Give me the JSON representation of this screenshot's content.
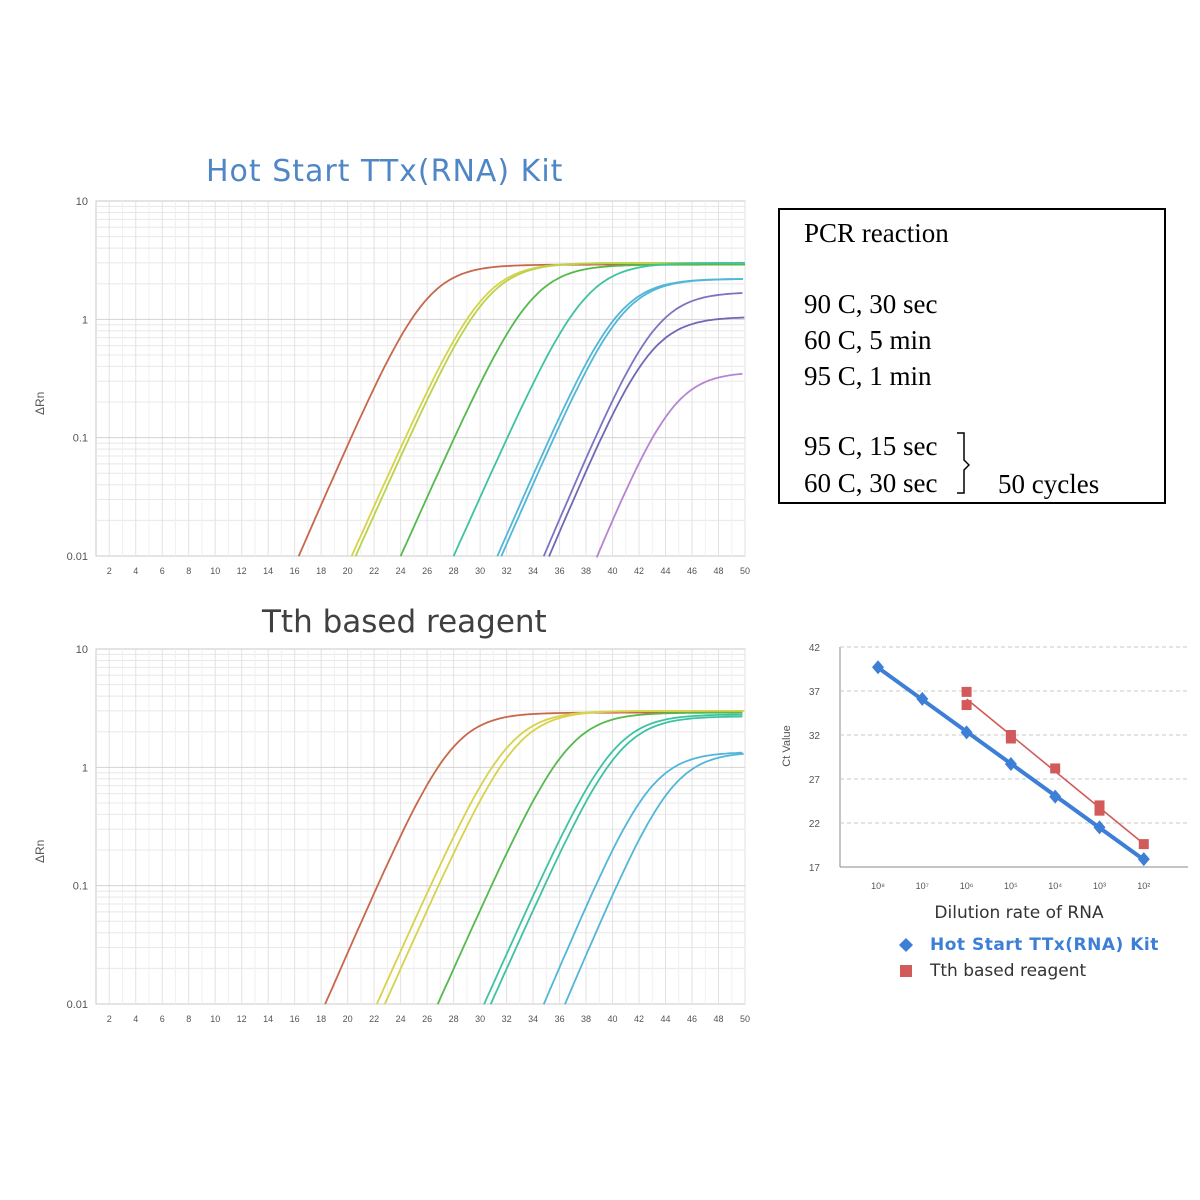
{
  "colors": {
    "blue_series": "#3d7fd6",
    "red_series": "#d25a5a",
    "curves": [
      "#c8674a",
      "#d8d24a",
      "#b7d44a",
      "#55b94e",
      "#3fc2a2",
      "#52b6d8",
      "#7b74c4",
      "#8d6cb4",
      "#b784d2"
    ]
  },
  "pcr_box": {
    "title": "PCR reaction",
    "steps": [
      "90 C, 30 sec",
      "60 C, 5 min",
      "95 C, 1 min"
    ],
    "cycle_steps": [
      "95 C, 15 sec",
      "60 C, 30 sec"
    ],
    "cycles_label": "50 cycles"
  },
  "chart_data": [
    {
      "type": "line",
      "title": "Hot Start TTx(RNA) Kit",
      "xlabel": "",
      "ylabel": "ΔRn",
      "yscale": "log",
      "ylim": [
        0.01,
        10
      ],
      "xlim": [
        1,
        50
      ],
      "yticks": [
        "10",
        "1",
        "0.1",
        "0.01"
      ],
      "xticks": [
        "2",
        "4",
        "6",
        "8",
        "10",
        "12",
        "14",
        "16",
        "18",
        "20",
        "22",
        "24",
        "26",
        "28",
        "30",
        "32",
        "34",
        "36",
        "38",
        "40",
        "42",
        "44",
        "46",
        "48",
        "50"
      ],
      "grid": true,
      "series": [
        {
          "color": "#c8674a",
          "start": 16.3,
          "ct": 20.2,
          "plateau": 2.9
        },
        {
          "color": "#d8d24a",
          "start": 20.3,
          "ct": 24.3,
          "plateau": 3.0
        },
        {
          "color": "#b7d44a",
          "start": 20.6,
          "ct": 24.6,
          "plateau": 3.0
        },
        {
          "color": "#55b94e",
          "start": 24.0,
          "ct": 28.0,
          "plateau": 2.9
        },
        {
          "color": "#3fc2a2",
          "start": 28.0,
          "ct": 32.0,
          "plateau": 3.0
        },
        {
          "color": "#52b6d8",
          "start": 31.3,
          "ct": 35.2,
          "plateau": 2.2
        },
        {
          "color": "#52b6d8",
          "start": 31.6,
          "ct": 35.5,
          "plateau": 2.2
        },
        {
          "color": "#7b74c4",
          "start": 34.8,
          "ct": 38.6,
          "plateau": 1.7
        },
        {
          "color": "#6f68b8",
          "start": 35.2,
          "ct": 39.0,
          "plateau": 1.05
        },
        {
          "color": "#b784d2",
          "start": 38.8,
          "ct": 42.5,
          "plateau": 0.36
        }
      ]
    },
    {
      "type": "line",
      "title": "Tth based reagent",
      "xlabel": "",
      "ylabel": "ΔRn",
      "yscale": "log",
      "ylim": [
        0.01,
        10
      ],
      "xlim": [
        1,
        50
      ],
      "yticks": [
        "10",
        "1",
        "0.1",
        "0.01"
      ],
      "xticks": [
        "2",
        "4",
        "6",
        "8",
        "10",
        "12",
        "14",
        "16",
        "18",
        "20",
        "22",
        "24",
        "26",
        "28",
        "30",
        "32",
        "34",
        "36",
        "38",
        "40",
        "42",
        "44",
        "46",
        "48",
        "50"
      ],
      "grid": true,
      "series": [
        {
          "color": "#c8674a",
          "start": 18.3,
          "ct": 22.2,
          "plateau": 2.9
        },
        {
          "color": "#d8d24a",
          "start": 22.2,
          "ct": 26.2,
          "plateau": 3.0
        },
        {
          "color": "#d8d24a",
          "start": 22.8,
          "ct": 26.8,
          "plateau": 3.0
        },
        {
          "color": "#55b94e",
          "start": 26.8,
          "ct": 30.8,
          "plateau": 2.9
        },
        {
          "color": "#3fc2a2",
          "start": 30.3,
          "ct": 34.3,
          "plateau": 2.8
        },
        {
          "color": "#3fc2a2",
          "start": 30.8,
          "ct": 34.8,
          "plateau": 2.7
        },
        {
          "color": "#52b6d8",
          "start": 34.8,
          "ct": 38.6,
          "plateau": 1.35
        },
        {
          "color": "#52b6d8",
          "start": 36.4,
          "ct": 40.2,
          "plateau": 1.35
        }
      ]
    },
    {
      "type": "scatter",
      "title": "",
      "xlabel": "Dilution rate of RNA",
      "ylabel": "Ct Value",
      "ylim": [
        17,
        42
      ],
      "yticks": [
        17,
        22,
        27,
        32,
        37,
        42
      ],
      "categories": [
        "10⁸",
        "10⁷",
        "10⁶",
        "10⁵",
        "10⁴",
        "10³",
        "10²"
      ],
      "exponents": [
        8,
        7,
        6,
        5,
        4,
        3,
        2
      ],
      "grid": "horizontal-dashed",
      "legend_position": "bottom",
      "series": [
        {
          "name": "Hot Start TTx(RNA) Kit",
          "color": "#3d7fd6",
          "marker": "diamond",
          "x": [
            8,
            7,
            6,
            5,
            4,
            3,
            2
          ],
          "values": [
            39.7,
            36.1,
            32.3,
            28.7,
            25.0,
            21.5,
            17.9
          ]
        },
        {
          "name": "Tth based reagent",
          "color": "#d25a5a",
          "marker": "square",
          "x": [
            6,
            6,
            5,
            5,
            4,
            3,
            3,
            2
          ],
          "values": [
            36.9,
            35.4,
            32.0,
            31.6,
            28.2,
            24.0,
            23.4,
            19.6
          ]
        }
      ]
    }
  ]
}
